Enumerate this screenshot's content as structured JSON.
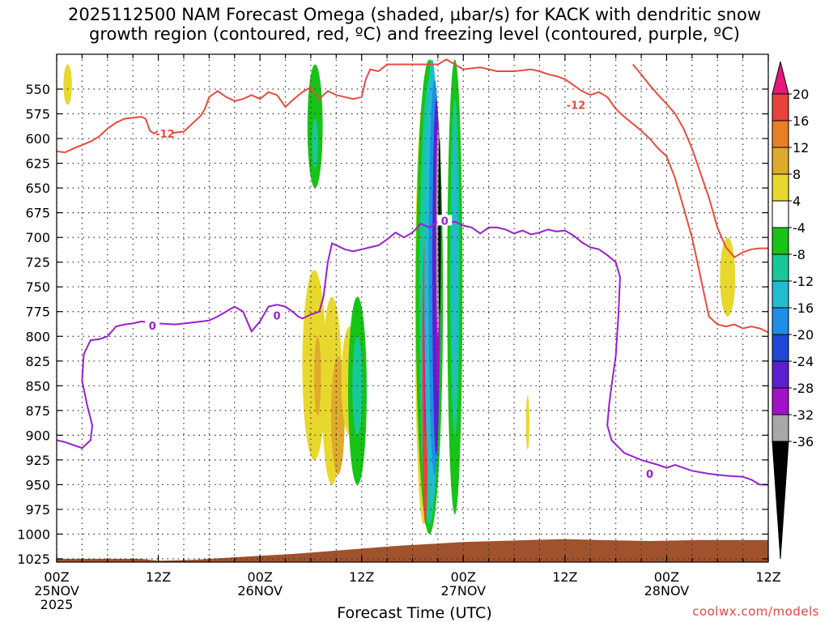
{
  "title_line1": "2025112500 NAM Forecast Omega (shaded, µbar/s) for KACK with dendritic snow",
  "title_line2": "growth region (contoured, red, ºC) and freezing level (contoured, purple, ºC)",
  "xlabel": "Forecast Time (UTC)",
  "credit": "coolwx.com/models",
  "chart_data": {
    "type": "time-height cross section",
    "x_ticks": [
      {
        "hour": 0,
        "l1": "00Z",
        "l2": "25NOV",
        "l3": "2025"
      },
      {
        "hour": 12,
        "l1": "12Z",
        "l2": "",
        "l3": ""
      },
      {
        "hour": 24,
        "l1": "00Z",
        "l2": "26NOV",
        "l3": ""
      },
      {
        "hour": 36,
        "l1": "12Z",
        "l2": "",
        "l3": ""
      },
      {
        "hour": 48,
        "l1": "00Z",
        "l2": "27NOV",
        "l3": ""
      },
      {
        "hour": 60,
        "l1": "12Z",
        "l2": "",
        "l3": ""
      },
      {
        "hour": 72,
        "l1": "00Z",
        "l2": "28NOV",
        "l3": ""
      },
      {
        "hour": 84,
        "l1": "12Z",
        "l2": "",
        "l3": ""
      }
    ],
    "xlim": [
      0,
      84
    ],
    "y_ticks": [
      "550",
      "575",
      "600",
      "625",
      "650",
      "675",
      "700",
      "725",
      "750",
      "775",
      "800",
      "825",
      "850",
      "875",
      "900",
      "925",
      "950",
      "975",
      "1000",
      "1025"
    ],
    "ylim": [
      525,
      1040
    ],
    "colorbar": {
      "labels": [
        "20",
        "16",
        "12",
        "8",
        "4",
        "-4",
        "-8",
        "-12",
        "-16",
        "-20",
        "-24",
        "-28",
        "-32",
        "-36"
      ],
      "colors": [
        "#e8157b",
        "#e8433b",
        "#e87f26",
        "#e0aa2a",
        "#e8d82e",
        "#ffffff",
        "#17c317",
        "#18c897",
        "#20bcd0",
        "#1e8ee8",
        "#1e47d8",
        "#5b1fd0",
        "#a012c8",
        "#a8a8a8",
        "#000000"
      ]
    },
    "dendritic_label": "-12",
    "freezing_label": "0",
    "dendritic_contour": [
      [
        0,
        613
      ],
      [
        1,
        614
      ],
      [
        2,
        610
      ],
      [
        4,
        603
      ],
      [
        5,
        598
      ],
      [
        6,
        590
      ],
      [
        7,
        584
      ],
      [
        8,
        580
      ],
      [
        10,
        578
      ],
      [
        10.5,
        580
      ],
      [
        11,
        592
      ],
      [
        11.5,
        595
      ],
      [
        12,
        592
      ],
      [
        13,
        596
      ],
      [
        14,
        594
      ],
      [
        15,
        593
      ],
      [
        16,
        585
      ],
      [
        17,
        577
      ],
      [
        17.5,
        570
      ],
      [
        18,
        558
      ],
      [
        19,
        552
      ],
      [
        20,
        558
      ],
      [
        21,
        562
      ],
      [
        22,
        560
      ],
      [
        23,
        556
      ],
      [
        24,
        560
      ],
      [
        25,
        553
      ],
      [
        26,
        556
      ],
      [
        27,
        568
      ],
      [
        28,
        560
      ],
      [
        29,
        553
      ],
      [
        30,
        548
      ],
      [
        30.5,
        555
      ],
      [
        31,
        560
      ],
      [
        32,
        552
      ],
      [
        33,
        556
      ],
      [
        35,
        560
      ],
      [
        36,
        558
      ],
      [
        36.5,
        540
      ],
      [
        37,
        530
      ],
      [
        38,
        532
      ],
      [
        39,
        525
      ],
      [
        45,
        525
      ],
      [
        46,
        520
      ],
      [
        48,
        530
      ],
      [
        50,
        528
      ],
      [
        52,
        532
      ],
      [
        54,
        532
      ],
      [
        56,
        530
      ],
      [
        57,
        532
      ],
      [
        58,
        535
      ],
      [
        59,
        537
      ],
      [
        60,
        540
      ],
      [
        61,
        546
      ],
      [
        62,
        552
      ],
      [
        63,
        556
      ],
      [
        64,
        553
      ],
      [
        65,
        558
      ],
      [
        66,
        570
      ],
      [
        67,
        578
      ],
      [
        68,
        585
      ],
      [
        69,
        592
      ],
      [
        70,
        600
      ],
      [
        71,
        610
      ],
      [
        72,
        618
      ],
      [
        73,
        640
      ],
      [
        74,
        670
      ],
      [
        75,
        700
      ],
      [
        75.5,
        720
      ],
      [
        76,
        740
      ],
      [
        76.5,
        760
      ],
      [
        77,
        780
      ],
      [
        78,
        788
      ],
      [
        79,
        790
      ],
      [
        80,
        788
      ],
      [
        81,
        792
      ],
      [
        82,
        790
      ],
      [
        83,
        792
      ],
      [
        84,
        796
      ]
    ],
    "dendritic_contour2": [
      [
        68,
        525
      ],
      [
        69,
        535
      ],
      [
        70,
        546
      ],
      [
        71,
        556
      ],
      [
        72,
        565
      ],
      [
        73,
        575
      ],
      [
        74,
        590
      ],
      [
        75,
        610
      ],
      [
        76,
        635
      ],
      [
        77,
        660
      ],
      [
        78,
        690
      ],
      [
        79,
        710
      ],
      [
        80,
        720
      ],
      [
        81,
        715
      ],
      [
        82,
        712
      ],
      [
        83,
        711
      ],
      [
        84,
        711
      ]
    ],
    "freezing_contour": [
      [
        0,
        905
      ],
      [
        1,
        907
      ],
      [
        2,
        910
      ],
      [
        3,
        913
      ],
      [
        4,
        905
      ],
      [
        4.2,
        890
      ],
      [
        3.6,
        870
      ],
      [
        3,
        845
      ],
      [
        3.2,
        818
      ],
      [
        4,
        804
      ],
      [
        5,
        803
      ],
      [
        6,
        800
      ],
      [
        7,
        790
      ],
      [
        8,
        788
      ],
      [
        9,
        787
      ],
      [
        10,
        785
      ],
      [
        12,
        787
      ],
      [
        14,
        788
      ],
      [
        16,
        786
      ],
      [
        18,
        784
      ],
      [
        19,
        780
      ],
      [
        20,
        775
      ],
      [
        21,
        770
      ],
      [
        22,
        775
      ],
      [
        23,
        795
      ],
      [
        24,
        785
      ],
      [
        25,
        770
      ],
      [
        26,
        768
      ],
      [
        27,
        770
      ],
      [
        28,
        776
      ],
      [
        28.5,
        780
      ],
      [
        29,
        782
      ],
      [
        30,
        778
      ],
      [
        31,
        775
      ],
      [
        31.5,
        760
      ],
      [
        32,
        725
      ],
      [
        32.5,
        706
      ],
      [
        33,
        708
      ],
      [
        34,
        712
      ],
      [
        35,
        714
      ],
      [
        36,
        712
      ],
      [
        37,
        710
      ],
      [
        38,
        708
      ],
      [
        39,
        702
      ],
      [
        40,
        695
      ],
      [
        41,
        700
      ],
      [
        42,
        695
      ],
      [
        43,
        686
      ],
      [
        44,
        690
      ],
      [
        45,
        684
      ],
      [
        46,
        686
      ],
      [
        47,
        684
      ],
      [
        48,
        688
      ],
      [
        49,
        690
      ],
      [
        50,
        696
      ],
      [
        51,
        690
      ],
      [
        52,
        690
      ],
      [
        53,
        692
      ],
      [
        54,
        696
      ],
      [
        55,
        693
      ],
      [
        56,
        697
      ],
      [
        57,
        695
      ],
      [
        58,
        692
      ],
      [
        59,
        694
      ],
      [
        60,
        693
      ],
      [
        61,
        698
      ],
      [
        62,
        705
      ],
      [
        63,
        710
      ],
      [
        64,
        712
      ],
      [
        65,
        718
      ],
      [
        66,
        725
      ],
      [
        66.5,
        740
      ],
      [
        66.3,
        780
      ],
      [
        66,
        820
      ],
      [
        65.5,
        850
      ],
      [
        65.2,
        870
      ],
      [
        65,
        890
      ],
      [
        65.5,
        905
      ],
      [
        67,
        918
      ],
      [
        69,
        925
      ],
      [
        71,
        930
      ],
      [
        72,
        933
      ],
      [
        73,
        930
      ],
      [
        75,
        936
      ],
      [
        77,
        939
      ],
      [
        79,
        941
      ],
      [
        81,
        942
      ],
      [
        82,
        945
      ],
      [
        83,
        950
      ],
      [
        84,
        950
      ]
    ]
  }
}
